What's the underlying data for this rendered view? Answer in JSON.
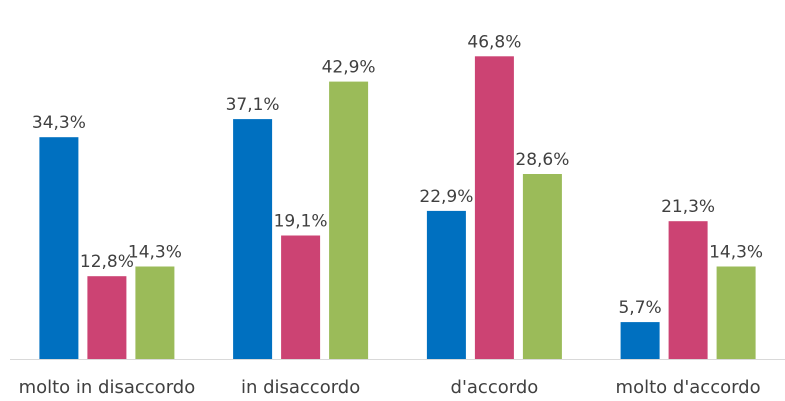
{
  "chart_data": {
    "type": "bar",
    "title": "",
    "xlabel": "",
    "ylabel": "",
    "categories": [
      "molto in disaccordo",
      "in disaccordo",
      "d'accordo",
      "molto d'accordo"
    ],
    "series": [
      {
        "color": "#0070c0",
        "values": [
          34.3,
          37.1,
          22.9,
          5.7
        ],
        "labels": [
          "34,3%",
          "37,1%",
          "22,9%",
          "5,7%"
        ]
      },
      {
        "color": "#cc4373",
        "values": [
          12.8,
          19.1,
          46.8,
          21.3
        ],
        "labels": [
          "12,8%",
          "19,1%",
          "46,8%",
          "21,3%"
        ]
      },
      {
        "color": "#9bbb59",
        "values": [
          14.3,
          42.9,
          28.6,
          14.3
        ],
        "labels": [
          "14,3%",
          "42,9%",
          "28,6%",
          "14,3%"
        ]
      }
    ],
    "ylim": [
      0,
      50
    ],
    "grid": false,
    "legend": "none",
    "axis_color": "#d9d9d9"
  }
}
